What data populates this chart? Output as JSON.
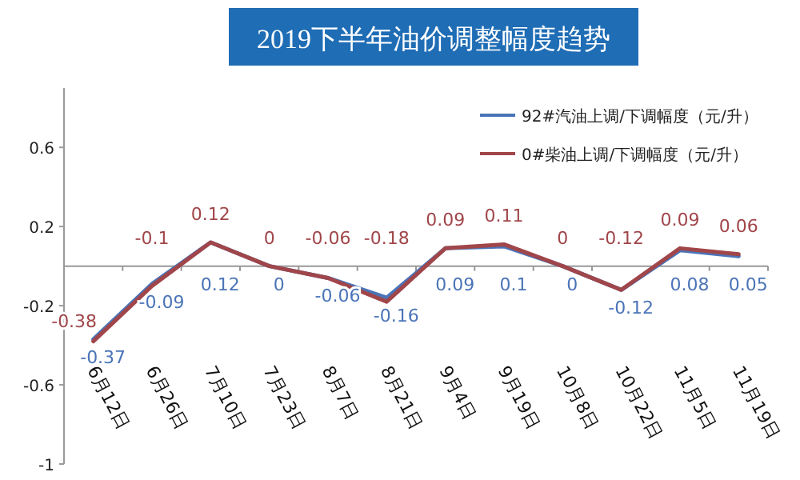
{
  "chart_data": {
    "type": "line",
    "title": "2019下半年油价调整幅度趋势",
    "categories": [
      "6月12日",
      "6月26日",
      "7月10日",
      "7月23日",
      "8月7日",
      "8月21日",
      "9月4日",
      "9月19日",
      "10月8日",
      "10月22日",
      "11月5日",
      "11月19日"
    ],
    "series": [
      {
        "name": "92#汽油上调/下调幅度（元/升）",
        "color": "#4a74b8",
        "values": [
          -0.37,
          -0.09,
          0.12,
          0,
          -0.06,
          -0.16,
          0.09,
          0.1,
          0,
          -0.12,
          0.08,
          0.05
        ]
      },
      {
        "name": "0#柴油上调/下调幅度（元/升）",
        "color": "#a0464a",
        "values": [
          -0.38,
          -0.1,
          0.12,
          0,
          -0.06,
          -0.18,
          0.09,
          0.11,
          0,
          -0.12,
          0.09,
          0.06
        ]
      }
    ],
    "ylim": [
      -1,
      0.9
    ],
    "yticks": [
      -1,
      -0.6,
      -0.2,
      0.2,
      0.6
    ],
    "data_labels": true,
    "legend": "top right",
    "grid": false,
    "marker": "none",
    "line_style": "solid"
  }
}
